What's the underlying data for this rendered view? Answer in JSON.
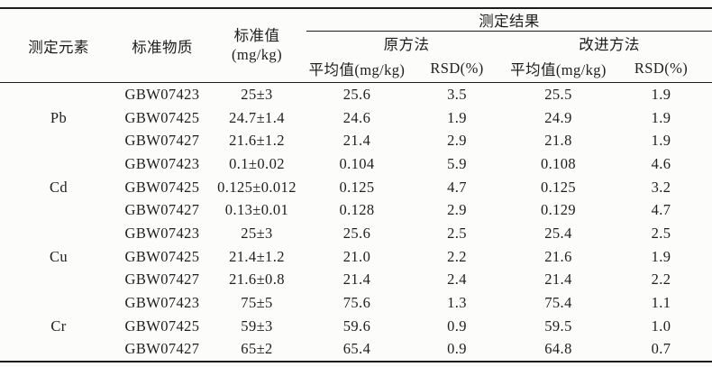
{
  "table": {
    "header": {
      "col_element": "测定元素",
      "col_material": "标准物质",
      "col_standard_line1": "标准值",
      "col_standard_line2": "(mg/kg)",
      "results_group": "测定结果",
      "method_original": "原方法",
      "method_improved": "改进方法",
      "mean_label": "平均值(mg/kg)",
      "rsd_label": "RSD(%)"
    },
    "groups": [
      {
        "element": "Pb",
        "rows": [
          {
            "material": "GBW07423",
            "standard": "25±3",
            "orig_mean": "25.6",
            "orig_rsd": "3.5",
            "impr_mean": "25.5",
            "impr_rsd": "1.9"
          },
          {
            "material": "GBW07425",
            "standard": "24.7±1.4",
            "orig_mean": "24.6",
            "orig_rsd": "1.9",
            "impr_mean": "24.9",
            "impr_rsd": "1.9"
          },
          {
            "material": "GBW07427",
            "standard": "21.6±1.2",
            "orig_mean": "21.4",
            "orig_rsd": "2.9",
            "impr_mean": "21.8",
            "impr_rsd": "1.9"
          }
        ]
      },
      {
        "element": "Cd",
        "rows": [
          {
            "material": "GBW07423",
            "standard": "0.1±0.02",
            "orig_mean": "0.104",
            "orig_rsd": "5.9",
            "impr_mean": "0.108",
            "impr_rsd": "4.6"
          },
          {
            "material": "GBW07425",
            "standard": "0.125±0.012",
            "orig_mean": "0.125",
            "orig_rsd": "4.7",
            "impr_mean": "0.125",
            "impr_rsd": "3.2"
          },
          {
            "material": "GBW07427",
            "standard": "0.13±0.01",
            "orig_mean": "0.128",
            "orig_rsd": "2.9",
            "impr_mean": "0.129",
            "impr_rsd": "4.7"
          }
        ]
      },
      {
        "element": "Cu",
        "rows": [
          {
            "material": "GBW07423",
            "standard": "25±3",
            "orig_mean": "25.6",
            "orig_rsd": "2.5",
            "impr_mean": "25.4",
            "impr_rsd": "2.5"
          },
          {
            "material": "GBW07425",
            "standard": "21.4±1.2",
            "orig_mean": "21.0",
            "orig_rsd": "2.2",
            "impr_mean": "21.6",
            "impr_rsd": "1.9"
          },
          {
            "material": "GBW07427",
            "standard": "21.6±0.8",
            "orig_mean": "21.4",
            "orig_rsd": "2.4",
            "impr_mean": "21.4",
            "impr_rsd": "2.2"
          }
        ]
      },
      {
        "element": "Cr",
        "rows": [
          {
            "material": "GBW07423",
            "standard": "75±5",
            "orig_mean": "75.6",
            "orig_rsd": "1.3",
            "impr_mean": "75.4",
            "impr_rsd": "1.1"
          },
          {
            "material": "GBW07425",
            "standard": "59±3",
            "orig_mean": "59.6",
            "orig_rsd": "0.9",
            "impr_mean": "59.5",
            "impr_rsd": "1.0"
          },
          {
            "material": "GBW07427",
            "standard": "65±2",
            "orig_mean": "65.4",
            "orig_rsd": "0.9",
            "impr_mean": "64.8",
            "impr_rsd": "0.7"
          }
        ]
      }
    ]
  },
  "colors": {
    "text": "#1e1e1e",
    "rule": "#1c1c1c",
    "background": "#fcfcfa"
  }
}
